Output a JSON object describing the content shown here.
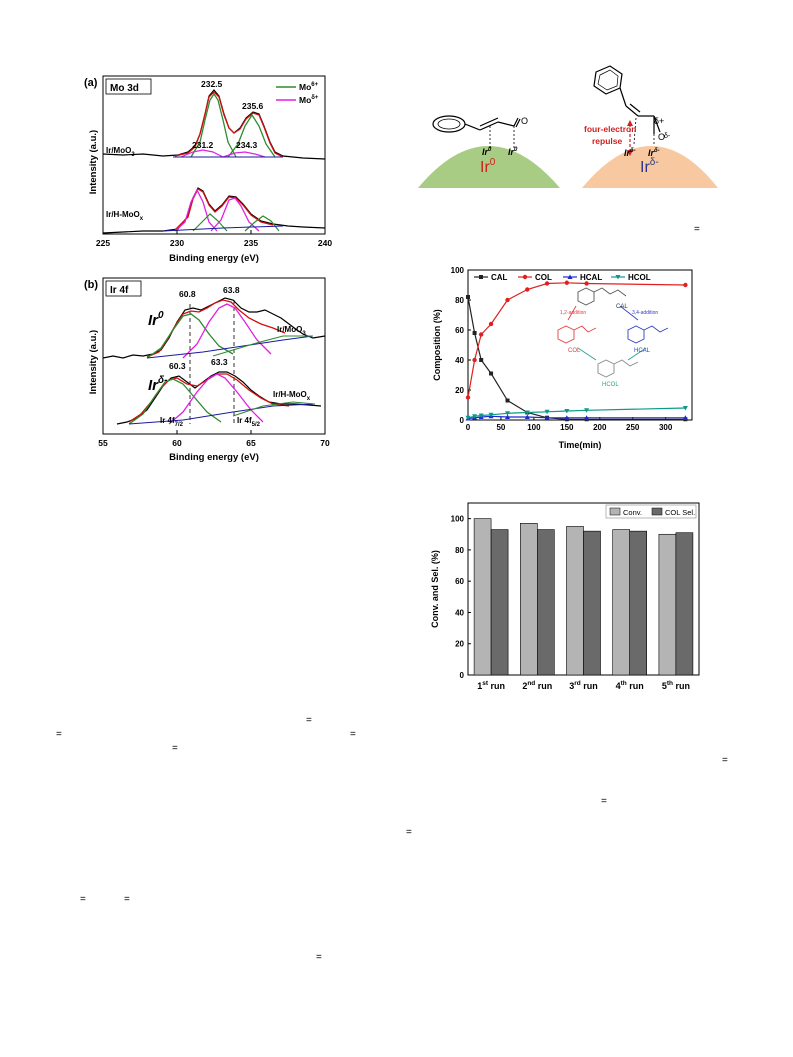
{
  "xps_mo": {
    "panel_label": "(a)",
    "box_label": "Mo 3d",
    "legend": [
      "Mo",
      "Mo"
    ],
    "legend_sup": [
      "6+",
      "δ+"
    ],
    "colors": {
      "mo6": "#2e8b2e",
      "mod": "#e020e0",
      "fit": "#d01010",
      "base": "#1a1aa0",
      "data": "#000000"
    },
    "sample_top": "Ir/MoO",
    "sample_top_sub": "3",
    "sample_bot": "Ir/H-MoO",
    "sample_bot_sub": "x",
    "peaks": [
      "232.5",
      "235.6",
      "231.2",
      "234.3"
    ],
    "xlabel": "Binding energy (eV)",
    "ylabel": "Intensity (a.u.)",
    "xticks": [
      "225",
      "230",
      "235",
      "240"
    ]
  },
  "xps_ir": {
    "panel_label": "(b)",
    "box_label": "Ir 4f",
    "peaks": [
      "60.8",
      "63.8",
      "60.3",
      "63.3"
    ],
    "state_top": "Ir",
    "state_top_sup": "0",
    "state_bot": "Ir",
    "state_bot_sup": "δ-",
    "sample_top": "Ir/MoO",
    "sample_top_sub": "3",
    "sample_bot": "Ir/H-MoO",
    "sample_bot_sub": "x",
    "orbital_1": "Ir 4f",
    "orbital_1_sub": "7/2",
    "orbital_2": "Ir 4f",
    "orbital_2_sub": "5/2",
    "xlabel": "Binding energy (eV)",
    "ylabel": "Intensity (a.u.)",
    "xticks": [
      "55",
      "60",
      "65",
      "70"
    ]
  },
  "scheme": {
    "left_site": "Ir",
    "left_site_sup": "0",
    "left_atom": "Ir",
    "left_atom_sup": "0",
    "right_site": "Ir",
    "right_site_sup": "δ-",
    "right_atom": "Ir",
    "right_atom_sup": "δ-",
    "label_line1": "four-electron",
    "label_line2": "repulse",
    "charge_pos": "δ+",
    "charge_neg": "δ-",
    "oxygen": "O",
    "colors": {
      "left_dome": "#a9cc85",
      "right_dome": "#f8c8a0",
      "red": "#d02020",
      "blue": "#2a3a8a"
    }
  },
  "chart_data": [
    {
      "type": "line",
      "xlabel": "Time(min)",
      "ylabel": "Composition (%)",
      "xlim": [
        0,
        340
      ],
      "ylim": [
        0,
        100
      ],
      "xticks": [
        "0",
        "50",
        "100",
        "150",
        "200",
        "250",
        "300"
      ],
      "yticks": [
        "0",
        "20",
        "40",
        "60",
        "80",
        "100"
      ],
      "legend_placement": "top",
      "series": [
        {
          "name": "CAL",
          "color": "#222222",
          "x": [
            0,
            10,
            20,
            35,
            60,
            90,
            120,
            150,
            180,
            330
          ],
          "y": [
            82,
            58,
            40,
            31,
            13,
            5,
            1.5,
            0.5,
            0.5,
            0.5
          ]
        },
        {
          "name": "COL",
          "color": "#e02020",
          "x": [
            0,
            10,
            20,
            35,
            60,
            90,
            120,
            150,
            180,
            330
          ],
          "y": [
            15,
            40,
            57,
            64,
            80,
            87,
            91,
            91.5,
            91,
            90
          ]
        },
        {
          "name": "HCAL",
          "color": "#1a2ad0",
          "x": [
            0,
            10,
            20,
            35,
            60,
            90,
            120,
            150,
            180,
            330
          ],
          "y": [
            1,
            1.5,
            2,
            2.5,
            2,
            2,
            1.5,
            1.5,
            1.5,
            1.5
          ]
        },
        {
          "name": "HCOL",
          "color": "#0a9a8a",
          "x": [
            0,
            10,
            20,
            35,
            60,
            90,
            120,
            150,
            180,
            330
          ],
          "y": [
            1.5,
            2.5,
            3,
            3.5,
            4.5,
            5,
            5.5,
            6,
            6.5,
            8
          ]
        }
      ],
      "inset": {
        "cal": "CAL",
        "col": "COL",
        "hcal": "HCAL",
        "hcol": "HCOL",
        "path_12": "1,2-addition",
        "path_34": "3,4-addition"
      }
    },
    {
      "type": "bar",
      "ylabel": "Conv. and Sel. (%)",
      "ylim": [
        0,
        110
      ],
      "yticks": [
        "0",
        "20",
        "40",
        "60",
        "80",
        "100"
      ],
      "categories": [
        "1",
        "2",
        "3",
        "4",
        "5"
      ],
      "category_sup": [
        "st",
        "nd",
        "rd",
        "th",
        "th"
      ],
      "category_suffix": "run",
      "legend_placement": "top-right",
      "series": [
        {
          "name": "Conv.",
          "color": "#b4b4b4",
          "values": [
            100,
            97,
            95,
            93,
            90
          ]
        },
        {
          "name": "COL Sel.",
          "color": "#6a6a6a",
          "values": [
            93,
            93,
            92,
            92,
            91
          ]
        }
      ]
    }
  ]
}
